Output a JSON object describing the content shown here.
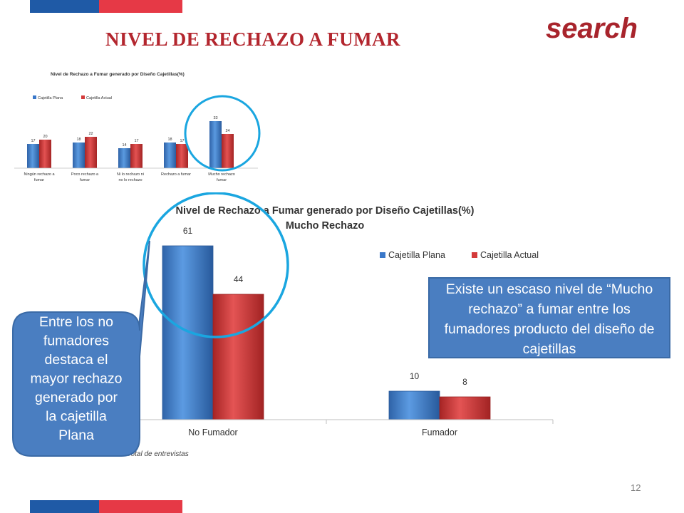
{
  "header": {
    "title": "NIVEL DE RECHAZO A FUMAR",
    "brand": "search",
    "colors": {
      "red": "#e63946",
      "blue": "#1f5aa6"
    }
  },
  "colors": {
    "plana": "#3a78c9",
    "actual": "#d43a3a",
    "circle": "#1aa6e0",
    "callout": "#4a7ec1"
  },
  "chart_data": [
    {
      "type": "bar",
      "title": "Nivel de Rechazo a Fumar generado por Diseño Cajetillas(%)",
      "categories": [
        "Ningún rechazo a fumar",
        "Poco rechazo a fumar",
        "Ni lo rechazo ni no lo rechazo",
        "Rechazo a fumar",
        "Mucho rechazo fumar"
      ],
      "series": [
        {
          "name": "Cajetilla Plana",
          "values": [
            17,
            18,
            14,
            18,
            33
          ]
        },
        {
          "name": "Cajetilla Actual",
          "values": [
            20,
            22,
            17,
            17,
            24
          ]
        }
      ],
      "legend": "top-left",
      "grid": false
    },
    {
      "type": "bar",
      "title": "Nivel de Rechazo a Fumar generado por Diseño Cajetillas(%)",
      "subtitle": "Mucho Rechazo",
      "categories": [
        "No Fumador",
        "Fumador"
      ],
      "series": [
        {
          "name": "Cajetilla Plana",
          "values": [
            61,
            10
          ]
        },
        {
          "name": "Cajetilla Actual",
          "values": [
            44,
            8
          ]
        }
      ],
      "legend": "top-right",
      "grid": false
    }
  ],
  "base_note": "Base: Total de entrevistas",
  "callouts": {
    "left": [
      "Entre los no",
      "fumadores",
      "destaca el",
      "mayor rechazo",
      "generado por",
      "la cajetilla",
      "Plana"
    ],
    "right": "Existe un escaso nivel de “Mucho rechazo” a fumar entre los fumadores producto del diseño de cajetillas"
  },
  "footer": {
    "page_number": "12"
  }
}
